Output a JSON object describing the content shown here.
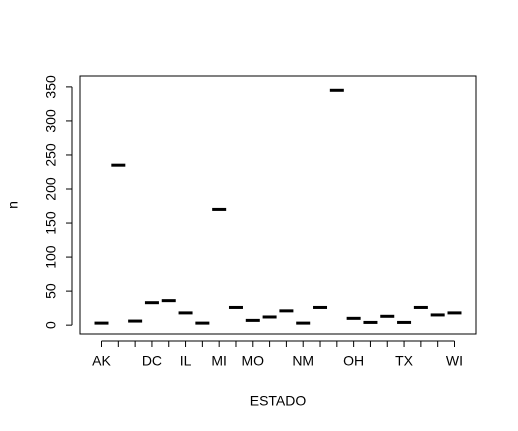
{
  "chart_data": {
    "type": "segment",
    "x_label": "ESTADO",
    "y_label": "n",
    "categories": [
      "AK",
      null,
      null,
      "DC",
      null,
      "IL",
      null,
      "MI",
      null,
      "MO",
      null,
      null,
      "NM",
      null,
      null,
      "OH",
      null,
      null,
      "TX",
      null,
      null,
      "WI"
    ],
    "values": [
      3,
      235,
      6,
      33,
      36,
      18,
      3,
      170,
      26,
      7,
      12,
      21,
      3,
      26,
      345,
      10,
      4,
      13,
      4,
      26,
      15,
      18
    ],
    "color": "#000000",
    "ylim": [
      -13,
      366
    ],
    "yticks": [
      0,
      50,
      100,
      150,
      200,
      250,
      300,
      350
    ]
  }
}
